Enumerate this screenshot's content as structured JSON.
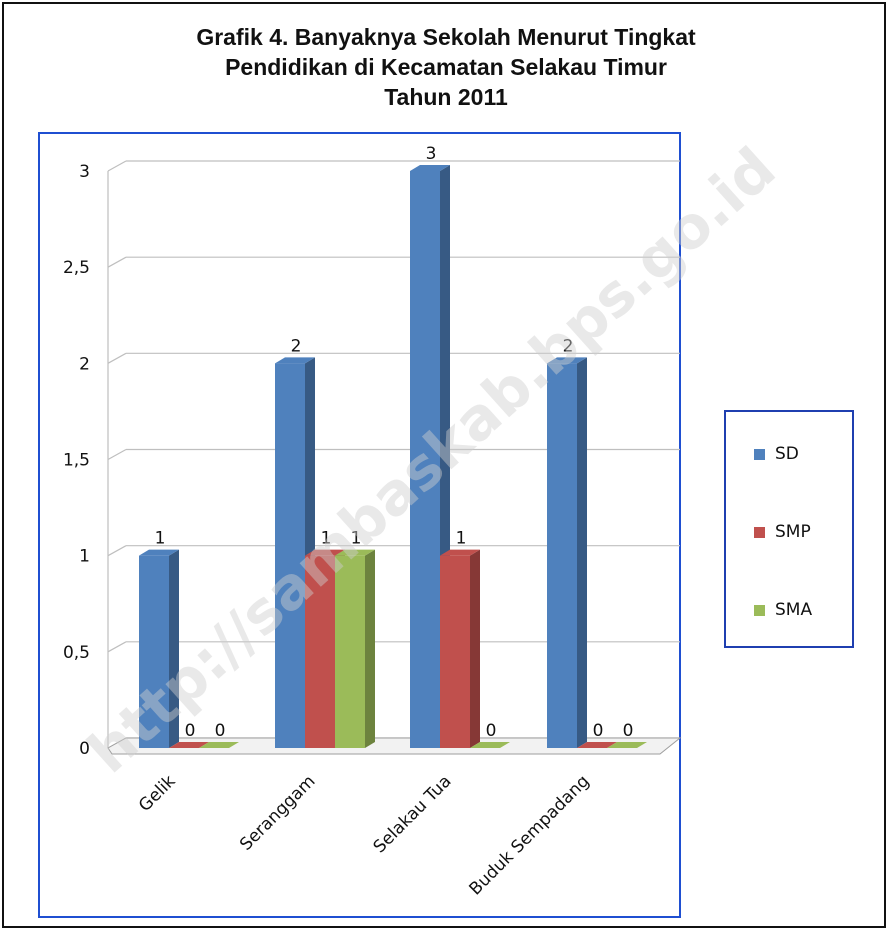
{
  "chart_data": {
    "type": "bar",
    "title_lines": [
      "Grafik 4. Banyaknya Sekolah Menurut Tingkat",
      "Pendidikan di Kecamatan  Selakau Timur",
      "Tahun 2011"
    ],
    "categories": [
      "Gelik",
      "Seranggam",
      "Selakau Tua",
      "Buduk Sempadang"
    ],
    "series": [
      {
        "name": "SD",
        "values": [
          1,
          2,
          3,
          2
        ],
        "color": "#4f81bd"
      },
      {
        "name": "SMP",
        "values": [
          0,
          1,
          1,
          0
        ],
        "color": "#c0504d"
      },
      {
        "name": "SMA",
        "values": [
          0,
          1,
          0,
          0
        ],
        "color": "#9bbb59"
      }
    ],
    "data_labels": [
      [
        "1",
        "2",
        "3",
        "2"
      ],
      [
        "0",
        "1",
        "1",
        "0"
      ],
      [
        "0",
        "1",
        "0",
        "0"
      ]
    ],
    "y_ticks": [
      "0",
      "0,5",
      "1",
      "1,5",
      "2",
      "2,5",
      "3"
    ],
    "ylim": [
      0,
      3
    ],
    "grid": true,
    "legend_position": "right",
    "watermark": "http://sambaskab.bps.go.id"
  }
}
